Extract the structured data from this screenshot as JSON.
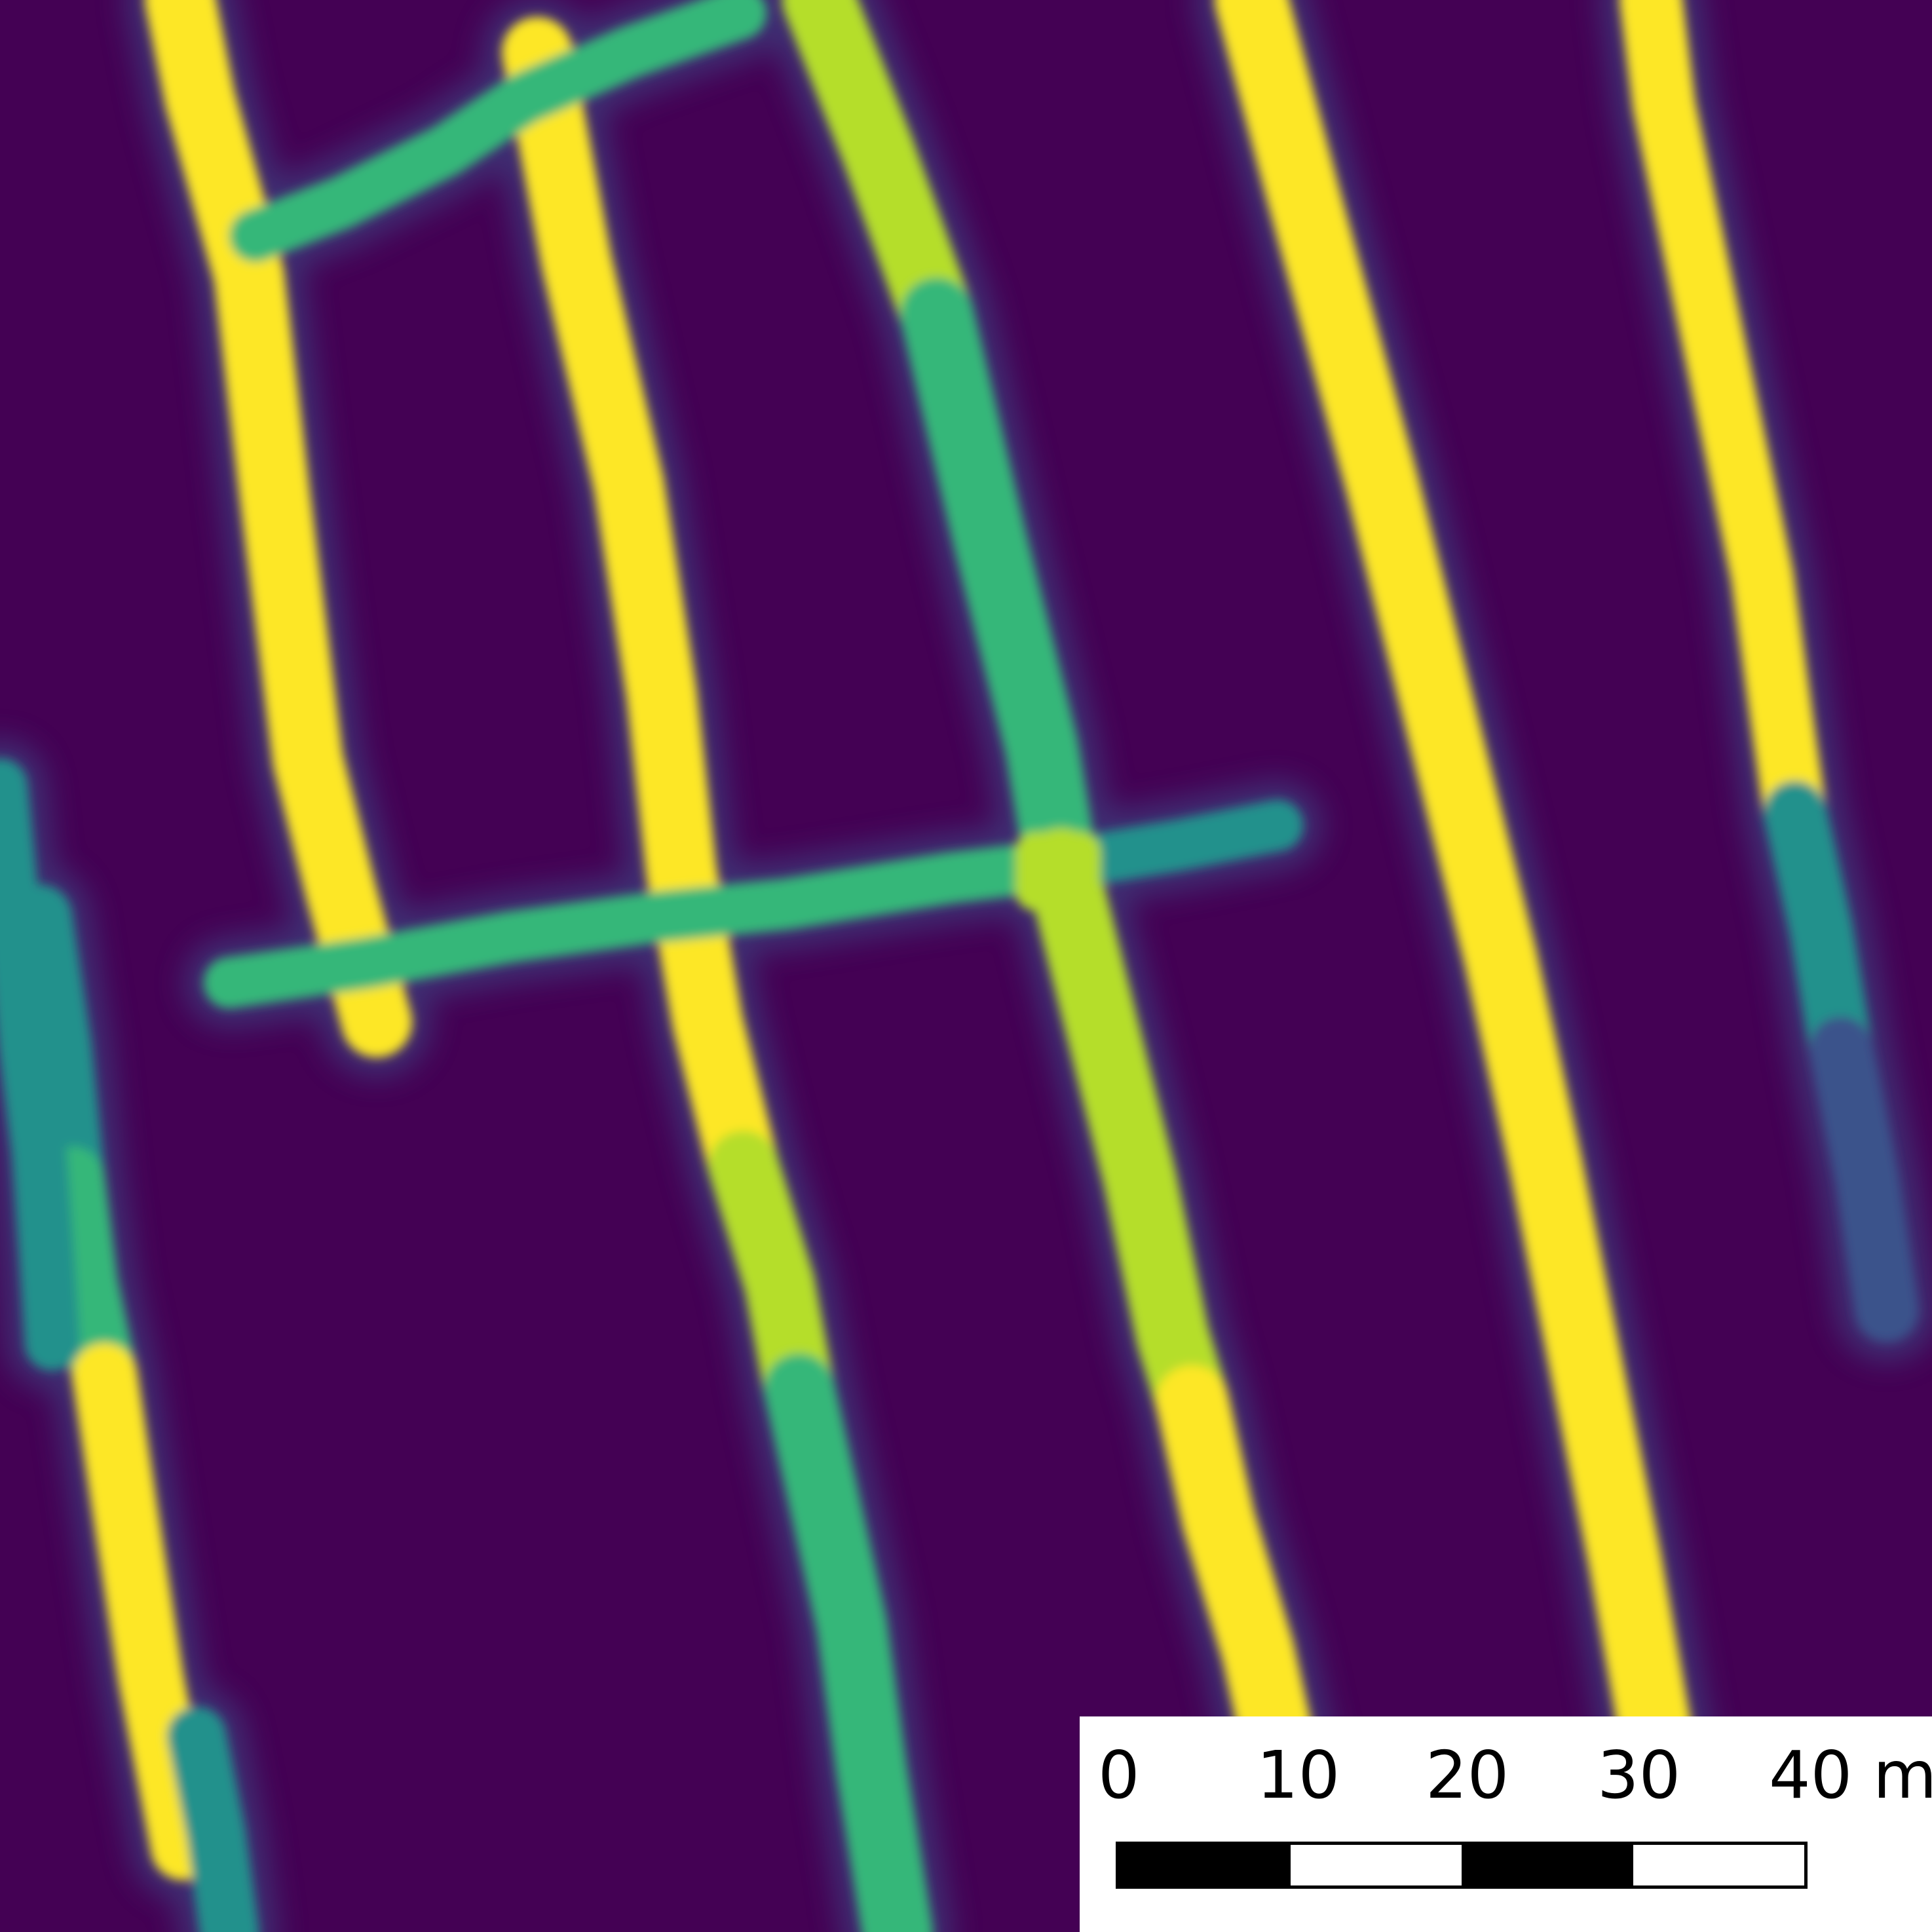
{
  "map": {
    "colormap": "viridis",
    "background_color": "#440154",
    "feature_colors": [
      "#fde725",
      "#b5de2b",
      "#5ec962",
      "#35b779",
      "#21918c",
      "#3b528b"
    ]
  },
  "scalebar": {
    "labels": [
      "0",
      "10",
      "20",
      "30",
      "40 m"
    ],
    "unit": "m",
    "segment_pattern": [
      "black",
      "white",
      "black",
      "white"
    ]
  }
}
